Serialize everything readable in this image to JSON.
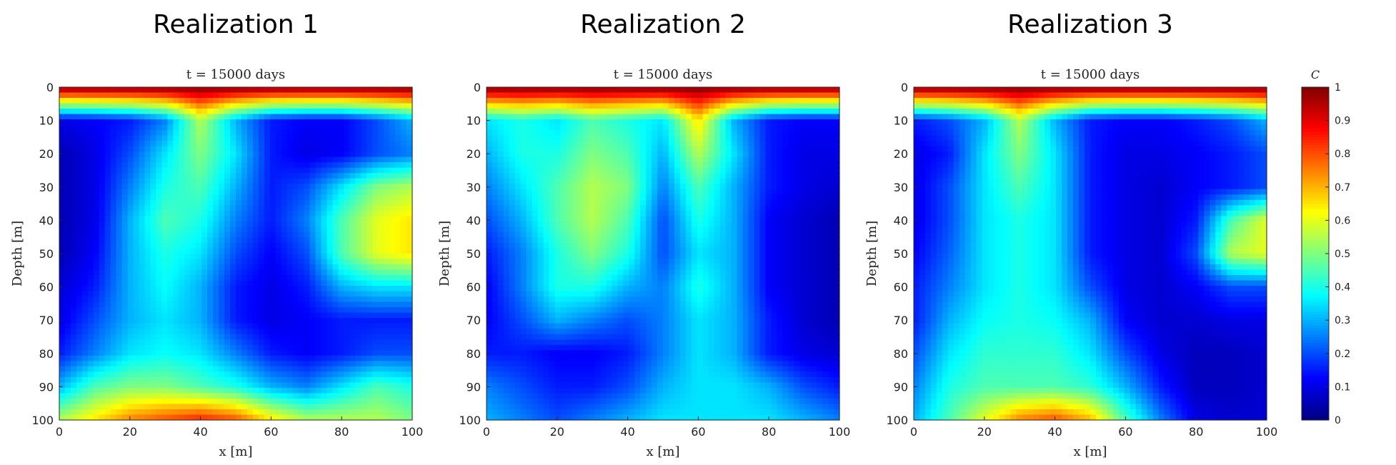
{
  "chart_data": [
    {
      "type": "heatmap",
      "figure_title": "Realization 1",
      "title": "t = 15000 days",
      "xlabel": "x [m]",
      "ylabel": "Depth [m]",
      "xlim": [
        0,
        100
      ],
      "ylim": [
        0,
        100
      ],
      "y_reversed": true,
      "x_ticks": [
        "0",
        "20",
        "40",
        "60",
        "80",
        "100"
      ],
      "y_ticks": [
        "0",
        "10",
        "20",
        "30",
        "40",
        "50",
        "60",
        "70",
        "80",
        "90",
        "100"
      ],
      "colormap": "jet",
      "clim": [
        0,
        1
      ],
      "sampled_C_grid": {
        "x": [
          0,
          10,
          20,
          30,
          40,
          50,
          60,
          70,
          80,
          90,
          100
        ],
        "depth": [
          0,
          10,
          20,
          30,
          40,
          50,
          60,
          70,
          80,
          90,
          100
        ],
        "C": [
          [
            1.0,
            1.0,
            1.0,
            1.0,
            1.0,
            1.0,
            1.0,
            1.0,
            1.0,
            1.0,
            1.0
          ],
          [
            0.1,
            0.12,
            0.15,
            0.25,
            0.55,
            0.3,
            0.15,
            0.12,
            0.12,
            0.2,
            0.3
          ],
          [
            0.05,
            0.1,
            0.2,
            0.35,
            0.5,
            0.35,
            0.15,
            0.1,
            0.12,
            0.2,
            0.25
          ],
          [
            0.05,
            0.1,
            0.25,
            0.4,
            0.45,
            0.3,
            0.15,
            0.2,
            0.35,
            0.5,
            0.55
          ],
          [
            0.05,
            0.1,
            0.3,
            0.45,
            0.4,
            0.25,
            0.15,
            0.25,
            0.45,
            0.6,
            0.65
          ],
          [
            0.05,
            0.12,
            0.3,
            0.4,
            0.35,
            0.2,
            0.12,
            0.2,
            0.45,
            0.6,
            0.65
          ],
          [
            0.08,
            0.15,
            0.3,
            0.38,
            0.3,
            0.15,
            0.1,
            0.15,
            0.3,
            0.35,
            0.35
          ],
          [
            0.1,
            0.2,
            0.3,
            0.35,
            0.3,
            0.15,
            0.1,
            0.12,
            0.15,
            0.15,
            0.15
          ],
          [
            0.15,
            0.25,
            0.35,
            0.38,
            0.35,
            0.25,
            0.15,
            0.12,
            0.15,
            0.2,
            0.2
          ],
          [
            0.3,
            0.45,
            0.5,
            0.5,
            0.45,
            0.4,
            0.3,
            0.25,
            0.35,
            0.45,
            0.4
          ],
          [
            0.55,
            0.65,
            0.75,
            0.8,
            0.85,
            0.8,
            0.65,
            0.55,
            0.55,
            0.55,
            0.5
          ]
        ]
      }
    },
    {
      "type": "heatmap",
      "figure_title": "Realization 2",
      "title": "t = 15000 days",
      "xlabel": "x [m]",
      "ylabel": "Depth [m]",
      "xlim": [
        0,
        100
      ],
      "ylim": [
        0,
        100
      ],
      "y_reversed": true,
      "x_ticks": [
        "0",
        "20",
        "40",
        "60",
        "80",
        "100"
      ],
      "y_ticks": [
        "0",
        "10",
        "20",
        "30",
        "40",
        "50",
        "60",
        "70",
        "80",
        "90",
        "100"
      ],
      "colormap": "jet",
      "clim": [
        0,
        1
      ],
      "sampled_C_grid": {
        "x": [
          0,
          10,
          20,
          30,
          40,
          50,
          60,
          70,
          80,
          90,
          100
        ],
        "depth": [
          0,
          10,
          20,
          30,
          40,
          50,
          60,
          70,
          80,
          90,
          100
        ],
        "C": [
          [
            1.0,
            1.0,
            1.0,
            1.0,
            1.0,
            1.0,
            1.0,
            1.0,
            1.0,
            1.0,
            1.0
          ],
          [
            0.35,
            0.4,
            0.35,
            0.45,
            0.4,
            0.35,
            0.65,
            0.3,
            0.15,
            0.12,
            0.12
          ],
          [
            0.3,
            0.4,
            0.4,
            0.5,
            0.45,
            0.3,
            0.55,
            0.35,
            0.15,
            0.1,
            0.1
          ],
          [
            0.25,
            0.35,
            0.45,
            0.55,
            0.5,
            0.25,
            0.45,
            0.3,
            0.15,
            0.1,
            0.08
          ],
          [
            0.2,
            0.3,
            0.45,
            0.55,
            0.45,
            0.2,
            0.4,
            0.3,
            0.12,
            0.08,
            0.05
          ],
          [
            0.15,
            0.25,
            0.4,
            0.5,
            0.4,
            0.2,
            0.35,
            0.3,
            0.12,
            0.08,
            0.05
          ],
          [
            0.12,
            0.25,
            0.4,
            0.4,
            0.3,
            0.25,
            0.4,
            0.3,
            0.12,
            0.08,
            0.05
          ],
          [
            0.12,
            0.2,
            0.3,
            0.25,
            0.2,
            0.25,
            0.35,
            0.3,
            0.15,
            0.08,
            0.05
          ],
          [
            0.15,
            0.15,
            0.12,
            0.12,
            0.15,
            0.25,
            0.35,
            0.3,
            0.15,
            0.1,
            0.08
          ],
          [
            0.25,
            0.2,
            0.15,
            0.15,
            0.2,
            0.3,
            0.35,
            0.35,
            0.3,
            0.2,
            0.15
          ],
          [
            0.3,
            0.25,
            0.2,
            0.25,
            0.3,
            0.35,
            0.35,
            0.35,
            0.35,
            0.3,
            0.25
          ]
        ]
      }
    },
    {
      "type": "heatmap",
      "figure_title": "Realization 3",
      "title": "t = 15000 days",
      "xlabel": "x [m]",
      "ylabel": "Depth [m]",
      "xlim": [
        0,
        100
      ],
      "ylim": [
        0,
        100
      ],
      "y_reversed": true,
      "x_ticks": [
        "0",
        "20",
        "40",
        "60",
        "80",
        "100"
      ],
      "y_ticks": [
        "0",
        "10",
        "20",
        "30",
        "40",
        "50",
        "60",
        "70",
        "80",
        "90",
        "100"
      ],
      "colormap": "jet",
      "clim": [
        0,
        1
      ],
      "sampled_C_grid": {
        "x": [
          0,
          10,
          20,
          30,
          40,
          50,
          60,
          70,
          80,
          90,
          100
        ],
        "depth": [
          0,
          10,
          20,
          30,
          40,
          50,
          60,
          70,
          80,
          90,
          100
        ],
        "C": [
          [
            1.0,
            1.0,
            1.0,
            1.0,
            1.0,
            1.0,
            1.0,
            1.0,
            1.0,
            1.0,
            1.0
          ],
          [
            0.15,
            0.2,
            0.3,
            0.55,
            0.3,
            0.15,
            0.12,
            0.12,
            0.15,
            0.2,
            0.3
          ],
          [
            0.1,
            0.15,
            0.35,
            0.5,
            0.35,
            0.15,
            0.1,
            0.1,
            0.12,
            0.15,
            0.2
          ],
          [
            0.1,
            0.2,
            0.35,
            0.45,
            0.35,
            0.15,
            0.1,
            0.08,
            0.12,
            0.15,
            0.2
          ],
          [
            0.1,
            0.2,
            0.35,
            0.4,
            0.35,
            0.15,
            0.1,
            0.08,
            0.15,
            0.45,
            0.6
          ],
          [
            0.12,
            0.22,
            0.35,
            0.4,
            0.35,
            0.15,
            0.1,
            0.08,
            0.2,
            0.55,
            0.6
          ],
          [
            0.15,
            0.25,
            0.35,
            0.4,
            0.35,
            0.2,
            0.1,
            0.08,
            0.12,
            0.2,
            0.2
          ],
          [
            0.15,
            0.3,
            0.38,
            0.4,
            0.38,
            0.3,
            0.12,
            0.08,
            0.08,
            0.1,
            0.1
          ],
          [
            0.2,
            0.35,
            0.42,
            0.42,
            0.42,
            0.35,
            0.2,
            0.1,
            0.06,
            0.06,
            0.08
          ],
          [
            0.25,
            0.4,
            0.45,
            0.45,
            0.45,
            0.42,
            0.3,
            0.15,
            0.06,
            0.06,
            0.08
          ],
          [
            0.3,
            0.45,
            0.6,
            0.75,
            0.8,
            0.7,
            0.45,
            0.25,
            0.1,
            0.08,
            0.08
          ]
        ]
      }
    }
  ],
  "colorbar": {
    "label": "C",
    "ticks": [
      "0",
      "0.1",
      "0.2",
      "0.3",
      "0.4",
      "0.5",
      "0.6",
      "0.7",
      "0.8",
      "0.9",
      "1"
    ],
    "range": [
      0,
      1
    ]
  }
}
